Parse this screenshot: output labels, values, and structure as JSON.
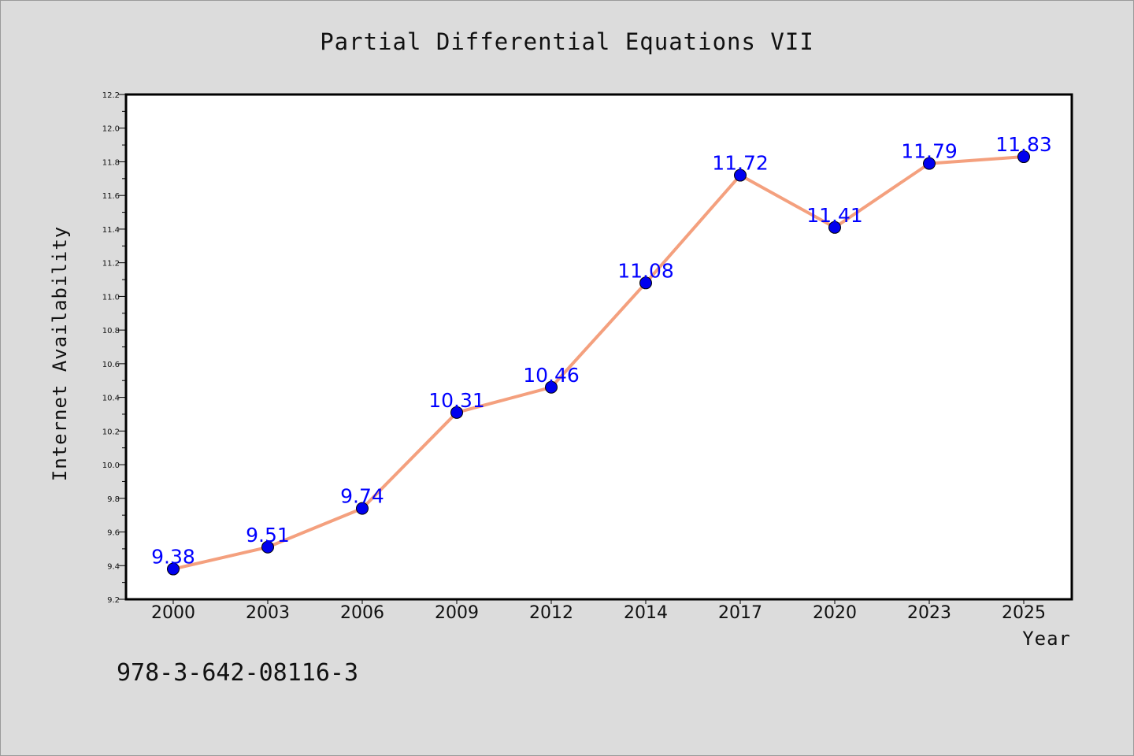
{
  "chart_data": {
    "type": "line",
    "title": "Partial Differential Equations VII",
    "xlabel": "Year",
    "ylabel": "Internet Availability",
    "categories": [
      "2000",
      "2003",
      "2006",
      "2009",
      "2012",
      "2014",
      "2017",
      "2020",
      "2023",
      "2025"
    ],
    "values": [
      9.38,
      9.51,
      9.74,
      10.31,
      10.46,
      11.08,
      11.72,
      11.41,
      11.79,
      11.83
    ],
    "data_labels": [
      "9.38",
      "9.51",
      "9.74",
      "10.31",
      "10.46",
      "11.08",
      "11.72",
      "11.41",
      "11.79",
      "11.83"
    ],
    "ylim": [
      9.2,
      12.2
    ],
    "yticks": [
      9.2,
      9.4,
      9.6,
      9.8,
      10.0,
      10.2,
      10.4,
      10.6,
      10.8,
      11.0,
      11.2,
      11.4,
      11.6,
      11.8,
      12.0,
      12.2
    ],
    "ytick_labels": [
      "9.2",
      "9.4",
      "9.6",
      "9.8",
      "10.0",
      "10.2",
      "10.4",
      "10.6",
      "10.8",
      "11.0",
      "11.2",
      "11.4",
      "11.6",
      "11.8",
      "12.0",
      "12.2"
    ],
    "grid": false,
    "line_color": "#f4a07e",
    "marker_color": "#0000ee",
    "label_color": "#0000ff"
  },
  "footer": {
    "isbn": "978-3-642-08116-3"
  },
  "colors": {
    "background": "#dcdcdc",
    "plot_background": "#ffffff",
    "axis": "#000000"
  }
}
